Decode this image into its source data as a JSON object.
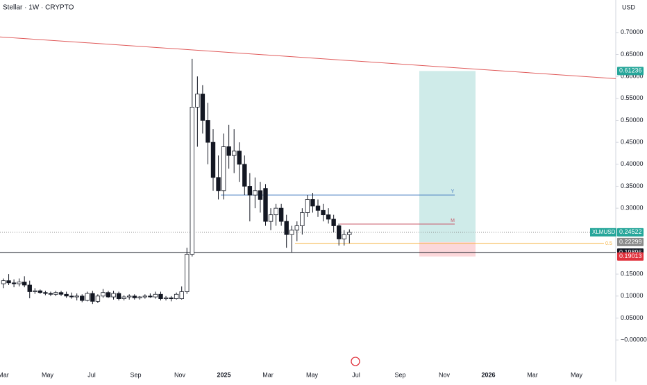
{
  "chart_data": {
    "type": "candlestick",
    "title": "Stellar · 1W · CRYPTO",
    "currency": "USD",
    "x_labels": [
      "Mar",
      "May",
      "Jul",
      "Sep",
      "Nov",
      "2025",
      "Mar",
      "May",
      "Jul",
      "Sep",
      "Nov",
      "2026",
      "Mar",
      "May"
    ],
    "ylim": [
      -0.063,
      0.774
    ],
    "yticks": [
      {
        "value": 0.7,
        "label": "0.70000"
      },
      {
        "value": 0.65,
        "label": "0.65000"
      },
      {
        "value": 0.6,
        "label": "0.60000"
      },
      {
        "value": 0.55,
        "label": "0.55000"
      },
      {
        "value": 0.5,
        "label": "0.50000"
      },
      {
        "value": 0.45,
        "label": "0.45000"
      },
      {
        "value": 0.4,
        "label": "0.40000"
      },
      {
        "value": 0.35,
        "label": "0.35000"
      },
      {
        "value": 0.3,
        "label": "0.30000"
      },
      {
        "value": 0.15,
        "label": "0.15000"
      },
      {
        "value": 0.1,
        "label": "0.10000"
      },
      {
        "value": 0.05,
        "label": "0.05000"
      },
      {
        "value": 0,
        "label": "−0.00000"
      }
    ],
    "open": [
      0.128,
      0.135,
      0.13,
      0.128,
      0.132,
      0.125,
      0.11,
      0.112,
      0.108,
      0.106,
      0.104,
      0.108,
      0.104,
      0.1,
      0.098,
      0.1,
      0.09,
      0.106,
      0.088,
      0.1,
      0.108,
      0.098,
      0.106,
      0.094,
      0.098,
      0.1,
      0.096,
      0.098,
      0.1,
      0.098,
      0.104,
      0.094,
      0.096,
      0.094,
      0.094,
      0.11,
      0.195,
      0.53,
      0.56,
      0.5,
      0.45,
      0.37,
      0.34,
      0.44,
      0.42,
      0.43,
      0.4,
      0.35,
      0.33,
      0.34,
      0.345,
      0.27,
      0.285,
      0.3,
      0.27,
      0.24,
      0.25,
      0.26,
      0.29,
      0.32,
      0.305,
      0.295,
      0.285,
      0.275,
      0.26,
      0.23,
      0.24
    ],
    "high": [
      0.14,
      0.15,
      0.138,
      0.14,
      0.145,
      0.135,
      0.118,
      0.115,
      0.112,
      0.11,
      0.112,
      0.112,
      0.11,
      0.108,
      0.106,
      0.104,
      0.11,
      0.112,
      0.104,
      0.116,
      0.112,
      0.112,
      0.11,
      0.102,
      0.104,
      0.104,
      0.1,
      0.104,
      0.106,
      0.11,
      0.11,
      0.1,
      0.1,
      0.108,
      0.122,
      0.21,
      0.64,
      0.6,
      0.58,
      0.54,
      0.48,
      0.42,
      0.47,
      0.49,
      0.48,
      0.45,
      0.42,
      0.38,
      0.37,
      0.36,
      0.355,
      0.3,
      0.31,
      0.31,
      0.285,
      0.26,
      0.27,
      0.3,
      0.33,
      0.335,
      0.32,
      0.31,
      0.3,
      0.285,
      0.265,
      0.25,
      0.252
    ],
    "low": [
      0.118,
      0.125,
      0.12,
      0.122,
      0.12,
      0.095,
      0.105,
      0.105,
      0.102,
      0.1,
      0.1,
      0.1,
      0.096,
      0.094,
      0.09,
      0.086,
      0.088,
      0.082,
      0.084,
      0.096,
      0.096,
      0.092,
      0.09,
      0.09,
      0.092,
      0.092,
      0.092,
      0.094,
      0.096,
      0.094,
      0.09,
      0.09,
      0.088,
      0.092,
      0.092,
      0.105,
      0.19,
      0.44,
      0.47,
      0.4,
      0.34,
      0.32,
      0.32,
      0.39,
      0.38,
      0.36,
      0.33,
      0.27,
      0.3,
      0.29,
      0.26,
      0.25,
      0.26,
      0.26,
      0.21,
      0.2,
      0.225,
      0.24,
      0.28,
      0.29,
      0.28,
      0.27,
      0.265,
      0.245,
      0.215,
      0.215,
      0.22
    ],
    "close": [
      0.135,
      0.13,
      0.128,
      0.132,
      0.125,
      0.11,
      0.112,
      0.108,
      0.106,
      0.104,
      0.108,
      0.104,
      0.1,
      0.098,
      0.1,
      0.09,
      0.106,
      0.088,
      0.1,
      0.108,
      0.098,
      0.106,
      0.094,
      0.098,
      0.1,
      0.096,
      0.098,
      0.1,
      0.098,
      0.104,
      0.094,
      0.096,
      0.094,
      0.104,
      0.11,
      0.195,
      0.53,
      0.56,
      0.5,
      0.45,
      0.37,
      0.34,
      0.44,
      0.42,
      0.43,
      0.4,
      0.35,
      0.33,
      0.34,
      0.32,
      0.27,
      0.285,
      0.3,
      0.27,
      0.24,
      0.25,
      0.26,
      0.29,
      0.32,
      0.305,
      0.295,
      0.285,
      0.275,
      0.26,
      0.23,
      0.24,
      0.245
    ],
    "trendline": {
      "color": "#e05a5a",
      "start": 0.69,
      "end": 0.595
    },
    "levels": [
      {
        "label": "Y",
        "value": 0.33,
        "color": "#4a7fc1"
      },
      {
        "label": "M",
        "value": 0.264,
        "color": "#c85a6a"
      },
      {
        "label": "0.5",
        "value": 0.2196,
        "color": "#f5b342"
      }
    ],
    "target_zone": {
      "top": 0.61236,
      "entry": 0.22299,
      "stop": 0.19013
    },
    "support": 0.19896,
    "last_price": {
      "symbol": "XLMUSD",
      "value": 0.24522,
      "label": "0.24522"
    },
    "price_tags": [
      {
        "value": 0.61236,
        "label": "0.61236",
        "color": "#26a69a"
      },
      {
        "value": 0.22299,
        "label": "0.22299",
        "color": "#8a8a8a"
      },
      {
        "value": 0.19896,
        "label": "0.19896",
        "color": "#131722"
      },
      {
        "value": 0.19013,
        "label": "0.19013",
        "color": "#e0313c"
      }
    ]
  }
}
